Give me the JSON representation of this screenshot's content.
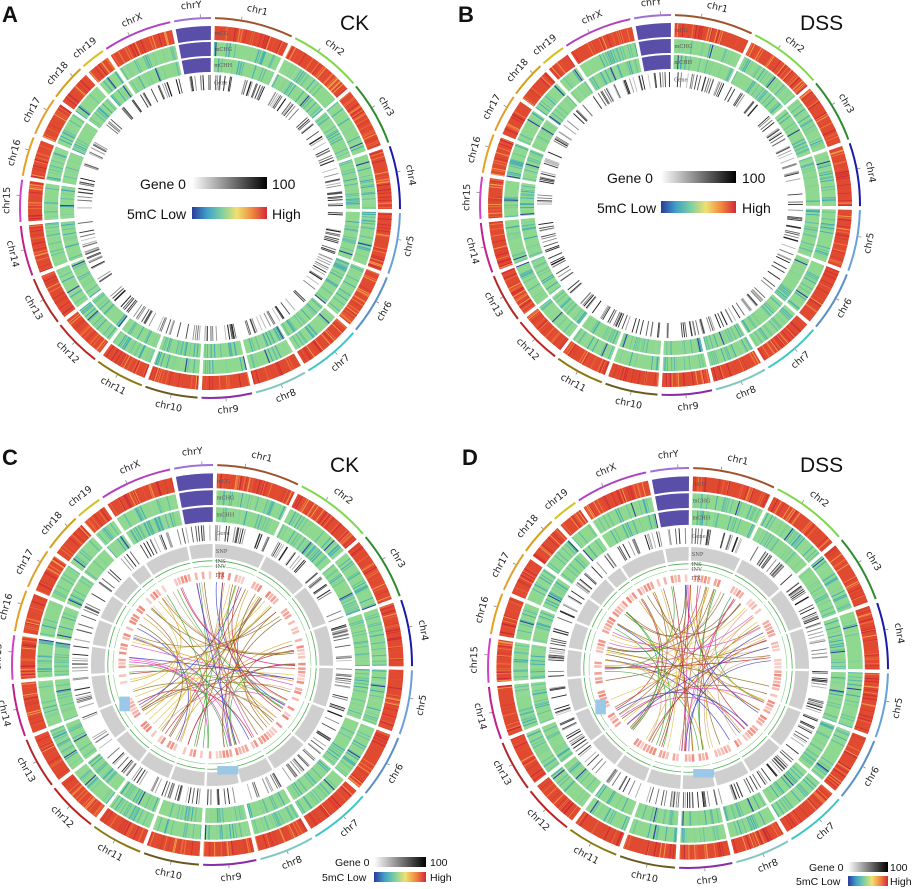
{
  "chromosomes": [
    "chr1",
    "chr2",
    "chr3",
    "chr4",
    "chr5",
    "chr6",
    "chr7",
    "chr8",
    "chr9",
    "chr10",
    "chr11",
    "chr12",
    "chr13",
    "chr14",
    "chr15",
    "chr16",
    "chr17",
    "chr18",
    "chr19",
    "chrX",
    "chrY"
  ],
  "chromosome_sizes": [
    195,
    182,
    160,
    157,
    152,
    150,
    145,
    130,
    125,
    131,
    122,
    120,
    121,
    125,
    104,
    98,
    95,
    91,
    61,
    171,
    91
  ],
  "chromosome_colors": [
    "#a0522d",
    "#7fd84a",
    "#2e8b2e",
    "#1a1aa8",
    "#6aa0d8",
    "#5b8fc8",
    "#3bc6c6",
    "#7fc8c0",
    "#8a2ba8",
    "#6b5a1e",
    "#8b7a10",
    "#c02020",
    "#b02828",
    "#c0208a",
    "#d040c8",
    "#e8a020",
    "#e0a030",
    "#d4a017",
    "#d8c020",
    "#b040c0",
    "#a070d8"
  ],
  "panels": [
    {
      "letter": "A",
      "title": "CK",
      "tracks": [
        "mCG",
        "mCHG",
        "mCHH",
        "Gene"
      ],
      "legend": {
        "gene_label": "Gene 0",
        "gene_max": "100",
        "mc_label": "5mC Low",
        "mc_max": "High"
      }
    },
    {
      "letter": "B",
      "title": "DSS",
      "tracks": [
        "mCG",
        "mCHG",
        "mCHH",
        "Gene"
      ],
      "legend": {
        "gene_label": "Gene 0",
        "gene_max": "100",
        "mc_label": "5mC Low",
        "mc_max": "High"
      }
    },
    {
      "letter": "C",
      "title": "CK",
      "tracks": [
        "mCG",
        "mCHG",
        "mCHH",
        "Gene",
        "SNP",
        "INS",
        "INV",
        "ITX"
      ],
      "legend": {
        "gene_label": "Gene 0",
        "gene_max": "100",
        "mc_label": "5mC Low",
        "mc_max": "High"
      }
    },
    {
      "letter": "D",
      "title": "DSS",
      "tracks": [
        "mCG",
        "mCHG",
        "mCHH",
        "Gene",
        "SNP",
        "INS",
        "INV",
        "ITX"
      ],
      "legend": {
        "gene_label": "Gene 0",
        "gene_max": "100",
        "mc_label": "5mC Low",
        "mc_max": "High"
      }
    }
  ],
  "colors": {
    "mc_gradient": [
      "#2b3a9a",
      "#3fa0c8",
      "#7fd0a0",
      "#f0e070",
      "#f08a40",
      "#d42838"
    ],
    "gene_gradient": [
      "#ffffff",
      "#000000"
    ],
    "mcg_base": "#e04a30",
    "mch_base": "#8fd890",
    "y_bar": "#5a4fa8",
    "snp": "#cfcfcf",
    "indel": "#4caf50",
    "itx": "#f08070"
  }
}
